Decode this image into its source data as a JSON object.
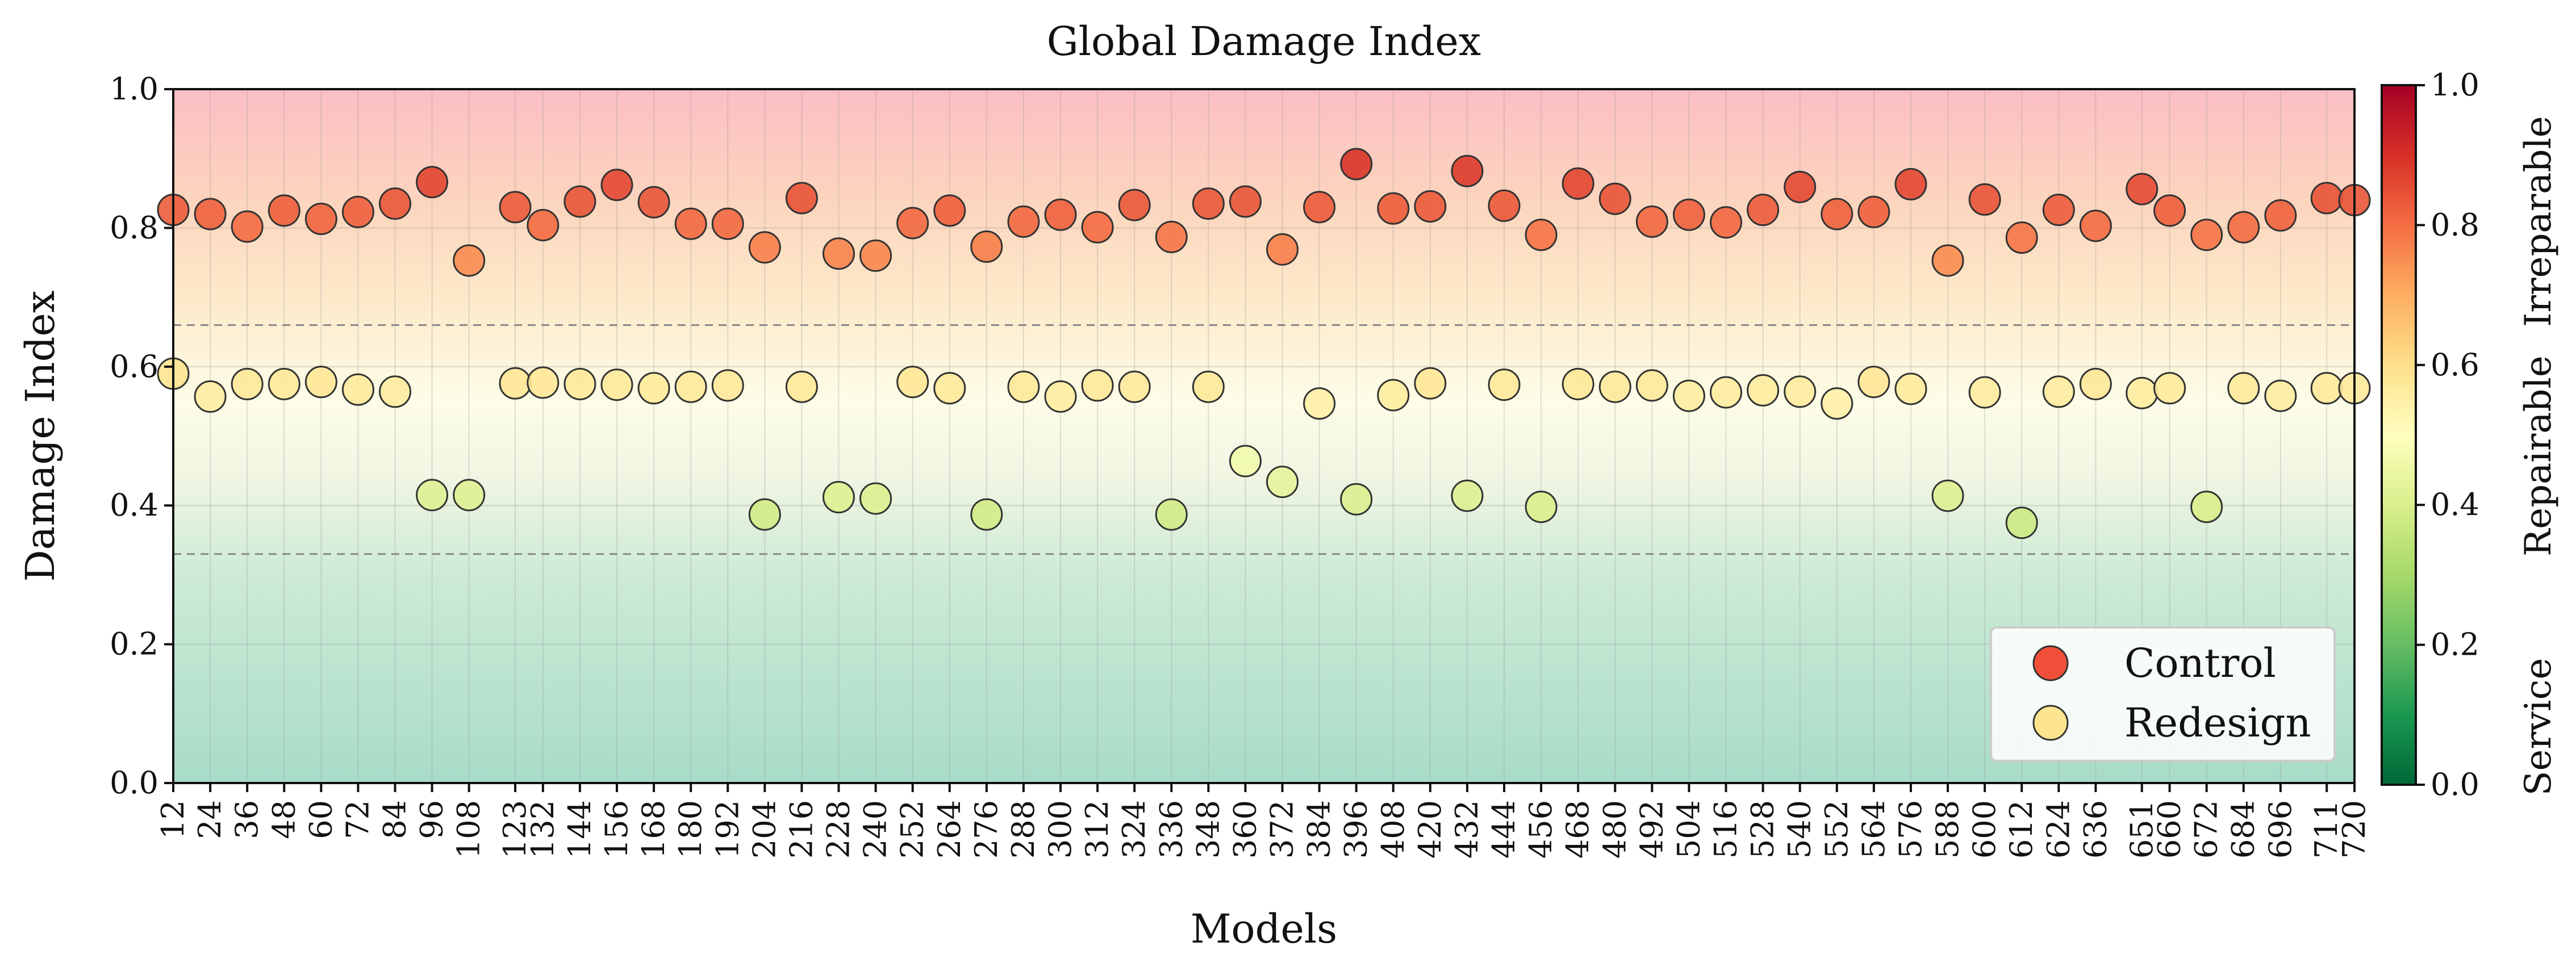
{
  "chart_data": {
    "type": "scatter",
    "title": "Global Damage Index",
    "xlabel": "Models",
    "ylabel": "Damage Index",
    "ylim": [
      0,
      1
    ],
    "yticks": [
      "0.0",
      "0.2",
      "0.4",
      "0.6",
      "0.8",
      "1.0"
    ],
    "threshold_lines": [
      0.33,
      0.66
    ],
    "categories": [
      "12",
      "24",
      "36",
      "48",
      "60",
      "72",
      "84",
      "96",
      "108",
      "123",
      "132",
      "144",
      "156",
      "168",
      "180",
      "192",
      "204",
      "216",
      "228",
      "240",
      "252",
      "264",
      "276",
      "288",
      "300",
      "312",
      "324",
      "336",
      "348",
      "360",
      "372",
      "384",
      "396",
      "408",
      "420",
      "432",
      "444",
      "456",
      "468",
      "480",
      "492",
      "504",
      "516",
      "528",
      "540",
      "552",
      "564",
      "576",
      "588",
      "600",
      "612",
      "624",
      "636",
      "651",
      "660",
      "672",
      "684",
      "696",
      "711",
      "720"
    ],
    "x_positions": [
      12,
      24,
      36,
      48,
      60,
      72,
      84,
      96,
      108,
      123,
      132,
      144,
      156,
      168,
      180,
      192,
      204,
      216,
      228,
      240,
      252,
      264,
      276,
      288,
      300,
      312,
      324,
      336,
      348,
      360,
      372,
      384,
      396,
      408,
      420,
      432,
      444,
      456,
      468,
      480,
      492,
      504,
      516,
      528,
      540,
      552,
      564,
      576,
      588,
      600,
      612,
      624,
      636,
      651,
      660,
      672,
      684,
      696,
      711,
      720
    ],
    "series": [
      {
        "name": "Control",
        "values": [
          0.826,
          0.82,
          0.802,
          0.825,
          0.813,
          0.823,
          0.835,
          0.866,
          0.753,
          0.83,
          0.804,
          0.838,
          0.862,
          0.837,
          0.806,
          0.806,
          0.772,
          0.843,
          0.763,
          0.76,
          0.807,
          0.825,
          0.773,
          0.809,
          0.819,
          0.801,
          0.833,
          0.787,
          0.835,
          0.838,
          0.769,
          0.83,
          0.892,
          0.828,
          0.831,
          0.882,
          0.832,
          0.79,
          0.864,
          0.842,
          0.809,
          0.819,
          0.808,
          0.826,
          0.859,
          0.82,
          0.823,
          0.863,
          0.753,
          0.841,
          0.786,
          0.826,
          0.803,
          0.856,
          0.825,
          0.79,
          0.801,
          0.818,
          0.843,
          0.84
        ]
      },
      {
        "name": "Redesign",
        "values": [
          0.59,
          0.557,
          0.575,
          0.575,
          0.578,
          0.567,
          0.564,
          0.415,
          0.415,
          0.576,
          0.577,
          0.575,
          0.574,
          0.569,
          0.571,
          0.573,
          0.387,
          0.571,
          0.412,
          0.41,
          0.578,
          0.569,
          0.387,
          0.571,
          0.557,
          0.573,
          0.571,
          0.387,
          0.571,
          0.464,
          0.434,
          0.547,
          0.409,
          0.559,
          0.576,
          0.414,
          0.574,
          0.398,
          0.575,
          0.571,
          0.573,
          0.558,
          0.563,
          0.566,
          0.564,
          0.547,
          0.578,
          0.568,
          0.414,
          0.563,
          0.375,
          0.564,
          0.575,
          0.562,
          0.569,
          0.398,
          0.569,
          0.558,
          0.569,
          0.569
        ]
      }
    ],
    "legend": {
      "position": "bottom-right",
      "items": [
        "Control",
        "Redesign"
      ]
    },
    "colorbar": {
      "range": [
        0,
        1
      ],
      "ticks": [
        "0.0",
        "0.2",
        "0.4",
        "0.6",
        "0.8",
        "1.0"
      ],
      "zone_labels": [
        "Service",
        "Repairable",
        "Irreparable"
      ],
      "colors": [
        "#006837",
        "#1a9850",
        "#66bd63",
        "#a6d96a",
        "#d9ef8b",
        "#ffffbf",
        "#fee08b",
        "#fdae61",
        "#f46d43",
        "#d73027",
        "#a50026"
      ]
    }
  }
}
